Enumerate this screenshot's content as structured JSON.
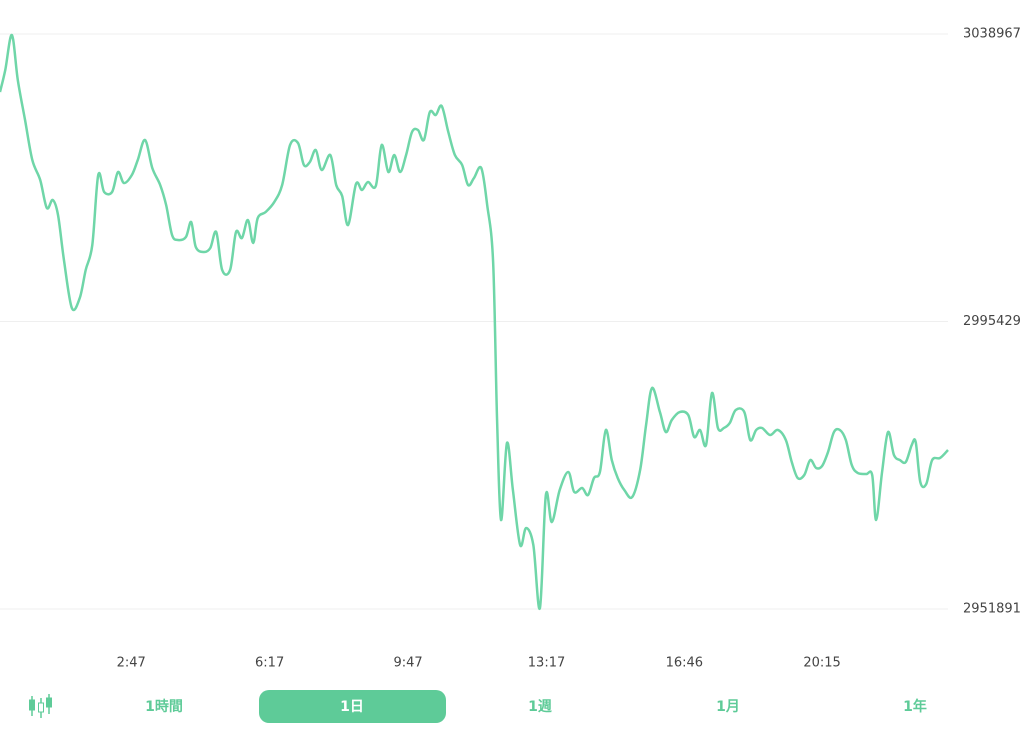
{
  "chart_data": {
    "type": "line",
    "color": "#6fd6a8",
    "grid": true,
    "xlim": [
      -32,
      1406
    ],
    "xticks": [
      {
        "value": 167,
        "label": "2:47"
      },
      {
        "value": 377,
        "label": "6:17"
      },
      {
        "value": 587,
        "label": "9:47"
      },
      {
        "value": 797,
        "label": "13:17"
      },
      {
        "value": 1006,
        "label": "16:46"
      },
      {
        "value": 1215,
        "label": "20:15"
      }
    ],
    "ylim": [
      2951891,
      3038967
    ],
    "yticks": [
      2951891,
      2995429,
      3038967
    ],
    "x": [
      -32,
      -24,
      -14,
      -5,
      6,
      17,
      29,
      39,
      48,
      56,
      65,
      77,
      89,
      98,
      108,
      117,
      126,
      138,
      147,
      156,
      168,
      177,
      188,
      199,
      211,
      220,
      229,
      238,
      250,
      258,
      265,
      277,
      287,
      296,
      305,
      317,
      326,
      335,
      344,
      352,
      359,
      371,
      384,
      396,
      408,
      420,
      429,
      438,
      447,
      456,
      469,
      478,
      487,
      496,
      508,
      517,
      526,
      538,
      547,
      557,
      566,
      575,
      584,
      593,
      602,
      611,
      620,
      629,
      638,
      648,
      658,
      669,
      678,
      687,
      698,
      707,
      716,
      722,
      728,
      737,
      746,
      757,
      766,
      777,
      787,
      796,
      805,
      817,
      830,
      839,
      851,
      860,
      869,
      878,
      887,
      896,
      905,
      915,
      927,
      939,
      948,
      957,
      969,
      978,
      987,
      999,
      1012,
      1021,
      1030,
      1039,
      1048,
      1057,
      1066,
      1075,
      1084,
      1097,
      1106,
      1115,
      1124,
      1136,
      1148,
      1160,
      1169,
      1178,
      1188,
      1197,
      1206,
      1215,
      1224,
      1233,
      1242,
      1251,
      1260,
      1269,
      1282,
      1291,
      1297,
      1306,
      1315,
      1324,
      1333,
      1342,
      1351,
      1357,
      1364,
      1373,
      1382,
      1394,
      1406
    ],
    "values": [
      3030180,
      3033520,
      3038810,
      3032000,
      3025940,
      3019890,
      3016860,
      3012620,
      3013830,
      3011560,
      3004740,
      2997470,
      2998990,
      3003230,
      3007010,
      3017610,
      3015040,
      3015040,
      3018070,
      3016400,
      3017610,
      3019890,
      3022920,
      3018680,
      3016100,
      3013070,
      3008530,
      3007770,
      3008220,
      3010500,
      3006710,
      3005950,
      3006560,
      3008980,
      3003230,
      3003230,
      3008980,
      3008070,
      3010800,
      3007320,
      3011100,
      3012010,
      3013520,
      3016100,
      3022160,
      3022460,
      3019130,
      3019580,
      3021400,
      3018370,
      3020640,
      3016100,
      3014430,
      3010040,
      3016250,
      3015340,
      3016550,
      3015950,
      3022160,
      3018070,
      3020640,
      3018070,
      3020640,
      3024130,
      3024430,
      3022920,
      3027150,
      3026700,
      3028060,
      3024130,
      3020640,
      3019130,
      3016100,
      3017160,
      3018680,
      3013070,
      3004440,
      2980510,
      2965370,
      2977030,
      2969910,
      2961580,
      2964150,
      2961580,
      2952040,
      2969150,
      2965060,
      2969910,
      2972640,
      2969610,
      2970210,
      2969150,
      2971730,
      2972640,
      2979000,
      2974450,
      2971730,
      2969910,
      2968850,
      2972940,
      2979750,
      2985360,
      2981720,
      2978690,
      2980510,
      2981720,
      2981270,
      2977940,
      2979000,
      2976720,
      2984600,
      2979300,
      2979300,
      2980060,
      2982030,
      2981720,
      2977480,
      2979000,
      2979300,
      2978240,
      2979000,
      2977480,
      2974150,
      2971730,
      2972180,
      2974450,
      2973240,
      2973550,
      2975660,
      2978690,
      2979000,
      2977480,
      2973700,
      2972490,
      2972330,
      2972180,
      2965370,
      2972640,
      2978690,
      2975210,
      2974450,
      2974150,
      2976720,
      2977180,
      2971120,
      2970820,
      2974450,
      2974760,
      2975970
    ]
  },
  "tabs": [
    "1時間",
    "1日",
    "1週",
    "1月",
    "1年"
  ]
}
